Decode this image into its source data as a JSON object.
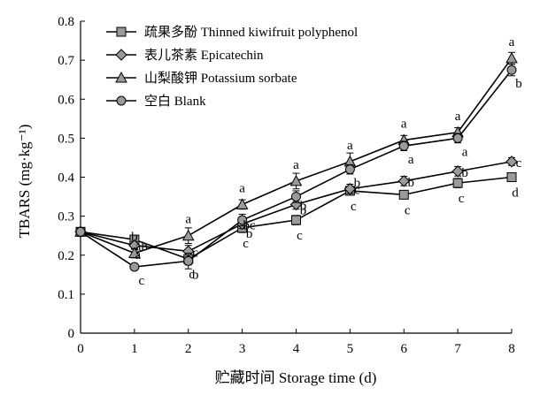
{
  "chart_data": {
    "type": "line",
    "xlabel": "贮藏时间 Storage time (d)",
    "ylabel": "TBARS (mg·kg⁻¹)",
    "x": [
      0,
      1,
      2,
      3,
      4,
      5,
      6,
      7,
      8
    ],
    "xlim": [
      0,
      8
    ],
    "ylim": [
      0,
      0.8
    ],
    "xticks": [
      "0",
      "1",
      "2",
      "3",
      "4",
      "5",
      "6",
      "7",
      "8"
    ],
    "yticks": [
      "0",
      "0.1",
      "0.2",
      "0.3",
      "0.4",
      "0.5",
      "0.6",
      "0.7",
      "0.8"
    ],
    "grid": false,
    "legend_position": "top-left",
    "series": [
      {
        "name": "疏果多酚 Thinned kiwifruit polyphenol",
        "marker": "square",
        "values": [
          0.26,
          0.24,
          0.19,
          0.27,
          0.29,
          0.365,
          0.355,
          0.385,
          0.4
        ],
        "errors": [
          0.008,
          0.01,
          0.015,
          0.012,
          0.012,
          0.01,
          0.01,
          0.012,
          0.01
        ],
        "labels": [
          "",
          "a",
          "c",
          "c",
          "c",
          "c",
          "c",
          "c",
          "d"
        ]
      },
      {
        "name": "表儿茶素 Epicatechin",
        "marker": "diamond",
        "values": [
          0.26,
          0.225,
          0.21,
          0.28,
          0.33,
          0.37,
          0.39,
          0.415,
          0.44
        ],
        "errors": [
          0.008,
          0.01,
          0.015,
          0.012,
          0.012,
          0.012,
          0.012,
          0.012,
          0.01
        ],
        "labels": [
          "",
          "ab",
          "c",
          "bc",
          "b",
          "c",
          "b",
          "b",
          "c"
        ]
      },
      {
        "name": "山梨酸钾 Potassium sorbate",
        "marker": "triangle",
        "values": [
          0.26,
          0.205,
          0.25,
          0.33,
          0.39,
          0.44,
          0.495,
          0.515,
          0.705
        ],
        "errors": [
          0.008,
          0.012,
          0.02,
          0.012,
          0.02,
          0.022,
          0.012,
          0.012,
          0.015
        ],
        "labels": [
          "",
          "b",
          "a",
          "a",
          "a",
          "a",
          "a",
          "a",
          "a"
        ]
      },
      {
        "name": "空白 Blank",
        "marker": "circle",
        "values": [
          0.26,
          0.17,
          0.185,
          0.29,
          0.35,
          0.42,
          0.48,
          0.5,
          0.675
        ],
        "errors": [
          0.008,
          0.008,
          0.02,
          0.015,
          0.015,
          0.012,
          0.012,
          0.012,
          0.015
        ],
        "labels": [
          "",
          "c",
          "b",
          "b",
          "b",
          "b",
          "a",
          "a",
          "b"
        ]
      }
    ]
  }
}
